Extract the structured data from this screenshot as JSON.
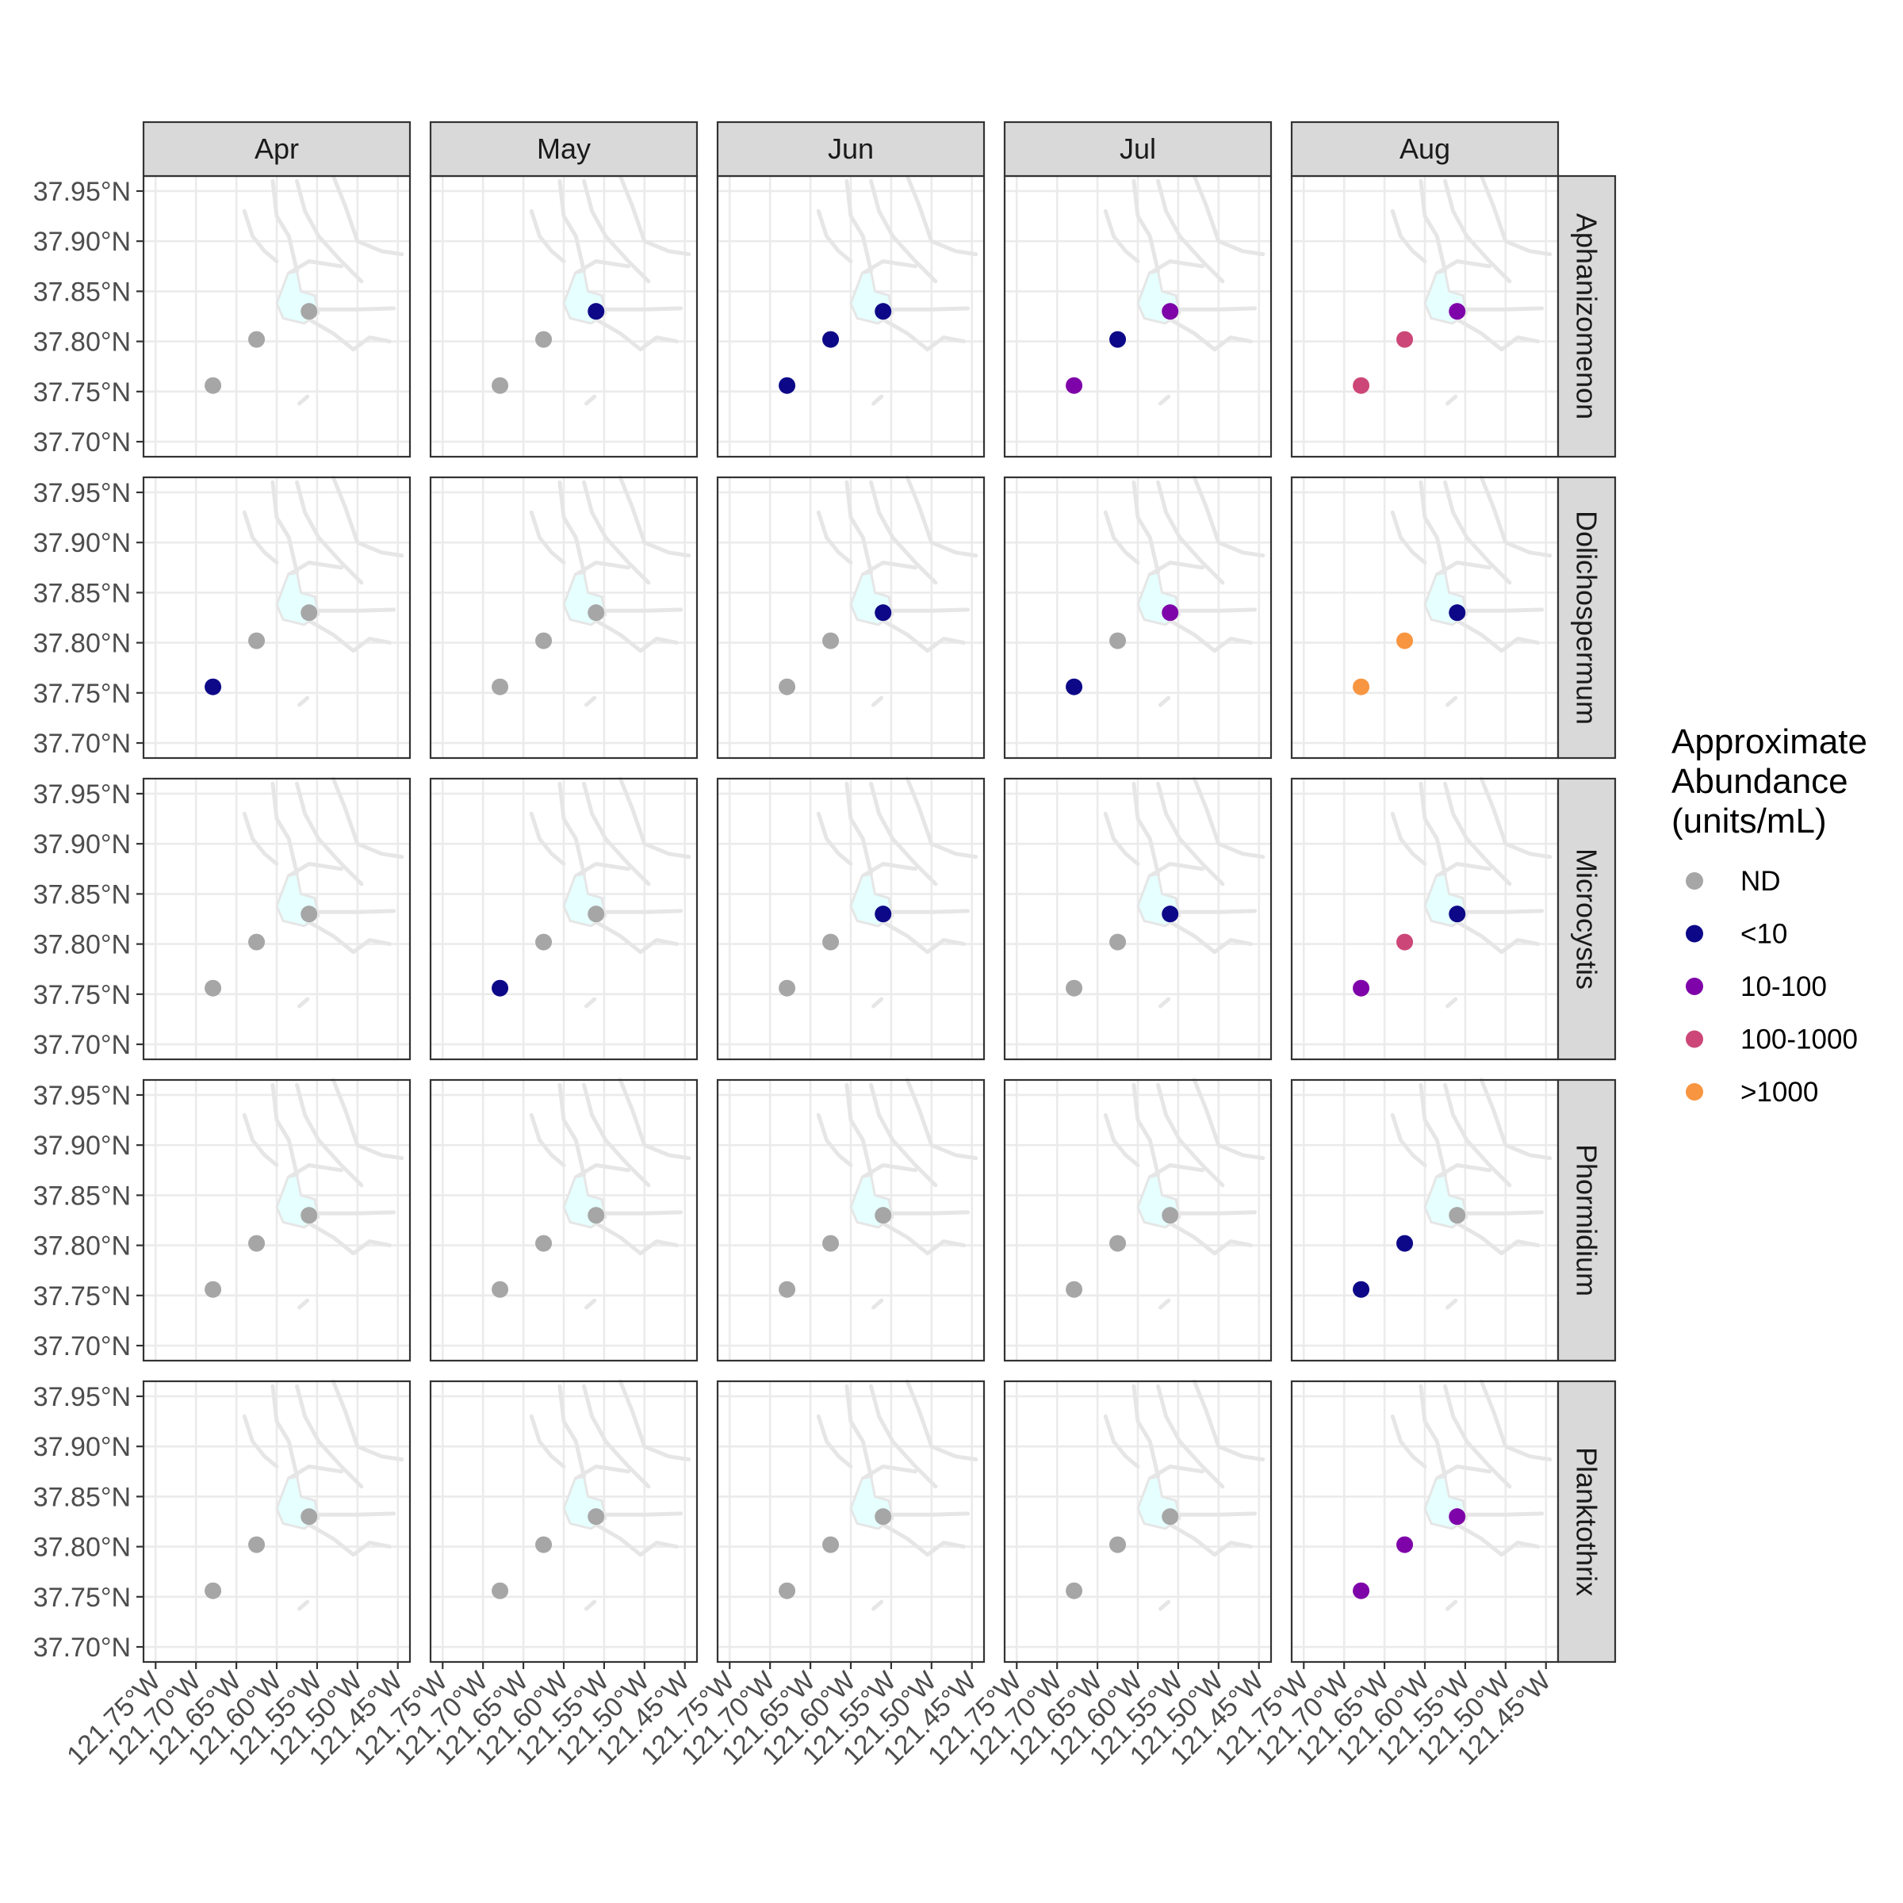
{
  "chart_data": {
    "type": "scatter",
    "subtype": "faceted-map",
    "columns": [
      "Apr",
      "May",
      "Jun",
      "Jul",
      "Aug"
    ],
    "rows": [
      "Aphanizomenon",
      "Dolichospermum",
      "Microcystis",
      "Phormidium",
      "Planktothrix"
    ],
    "x_ticks": [
      "121.75°W",
      "121.70°W",
      "121.65°W",
      "121.60°W",
      "121.55°W",
      "121.50°W",
      "121.45°W"
    ],
    "x_tick_values": [
      -121.75,
      -121.7,
      -121.65,
      -121.6,
      -121.55,
      -121.5,
      -121.45
    ],
    "y_ticks": [
      "37.95°N",
      "37.90°N",
      "37.85°N",
      "37.80°N",
      "37.75°N",
      "37.70°N"
    ],
    "y_tick_values": [
      37.95,
      37.9,
      37.85,
      37.8,
      37.75,
      37.7
    ],
    "xlim": [
      -121.765,
      -121.435
    ],
    "ylim": [
      37.685,
      37.965
    ],
    "stations": [
      {
        "lon": -121.679,
        "lat": 37.756
      },
      {
        "lon": -121.625,
        "lat": 37.802
      },
      {
        "lon": -121.56,
        "lat": 37.83
      }
    ],
    "legend": {
      "title": [
        "Approximate",
        "Abundance",
        "(units/mL)"
      ],
      "position": "right",
      "categories": [
        "ND",
        "<10",
        "10-100",
        "100-1000",
        ">1000"
      ],
      "colors": [
        "#A6A6A6",
        "#0D0887",
        "#7E03A8",
        "#CC4778",
        "#F89540"
      ]
    },
    "grid": true,
    "values": {
      "Aphanizomenon": [
        [
          "ND",
          "ND",
          "ND"
        ],
        [
          "ND",
          "ND",
          "<10"
        ],
        [
          "<10",
          "<10",
          "<10"
        ],
        [
          "10-100",
          "<10",
          "10-100"
        ],
        [
          "100-1000",
          "100-1000",
          "10-100"
        ]
      ],
      "Dolichospermum": [
        [
          "<10",
          "ND",
          "ND"
        ],
        [
          "ND",
          "ND",
          "ND"
        ],
        [
          "ND",
          "ND",
          "<10"
        ],
        [
          "<10",
          "ND",
          "10-100"
        ],
        [
          ">1000",
          ">1000",
          "<10"
        ]
      ],
      "Microcystis": [
        [
          "ND",
          "ND",
          "ND"
        ],
        [
          "<10",
          "ND",
          "ND"
        ],
        [
          "ND",
          "ND",
          "<10"
        ],
        [
          "ND",
          "ND",
          "<10"
        ],
        [
          "10-100",
          "100-1000",
          "<10"
        ]
      ],
      "Phormidium": [
        [
          "ND",
          "ND",
          "ND"
        ],
        [
          "ND",
          "ND",
          "ND"
        ],
        [
          "ND",
          "ND",
          "ND"
        ],
        [
          "ND",
          "ND",
          "ND"
        ],
        [
          "<10",
          "<10",
          "ND"
        ]
      ],
      "Planktothrix": [
        [
          "ND",
          "ND",
          "ND"
        ],
        [
          "ND",
          "ND",
          "ND"
        ],
        [
          "ND",
          "ND",
          "ND"
        ],
        [
          "ND",
          "ND",
          "ND"
        ],
        [
          "10-100",
          "10-100",
          "10-100"
        ]
      ]
    }
  }
}
